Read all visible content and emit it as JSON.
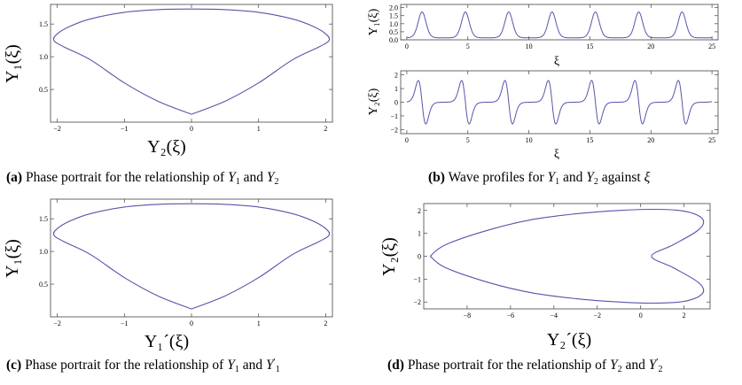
{
  "chart_data": [
    {
      "id": "a",
      "type": "line",
      "xlabel": "Y₂(ξ)",
      "ylabel": "Y₁(ξ)",
      "xlim": [
        -2.1,
        2.1
      ],
      "ylim": [
        0,
        1.8
      ],
      "xticks": [
        -2,
        -1,
        0,
        1,
        2
      ],
      "xtick_labels": [
        "−2",
        "−1",
        "0",
        "1",
        "2"
      ],
      "yticks": [
        0.5,
        1.0,
        1.5
      ],
      "ytick_labels": [
        "0.5",
        "1.0",
        "1.5"
      ],
      "series": [
        {
          "x": [
            0,
            0.5,
            1.0,
            1.5,
            1.9,
            2.05,
            2.0,
            1.8,
            1.5,
            1.0,
            0.5,
            0,
            -0.5,
            -1.0,
            -1.5,
            -1.8,
            -2.0,
            -2.05,
            -1.9,
            -1.5,
            -1.0,
            -0.5,
            0
          ],
          "y": [
            0.12,
            0.32,
            0.6,
            0.95,
            1.15,
            1.25,
            1.35,
            1.47,
            1.58,
            1.68,
            1.72,
            1.73,
            1.72,
            1.68,
            1.58,
            1.47,
            1.35,
            1.25,
            1.15,
            0.95,
            0.6,
            0.32,
            0.12
          ]
        }
      ],
      "caption": {
        "label": "(a)",
        "text": "Phase portrait for the relationship of",
        "v1": "Y",
        "s1": "1",
        "and": "and",
        "v2": "Y",
        "s2": "2"
      }
    },
    {
      "id": "b1",
      "type": "line",
      "xlabel": "ξ",
      "ylabel": "Y₁(ξ)",
      "xlim": [
        -0.5,
        25.5
      ],
      "ylim": [
        0,
        2.2
      ],
      "xticks": [
        0,
        5,
        10,
        15,
        20,
        25
      ],
      "xtick_labels": [
        "0",
        "5",
        "10",
        "15",
        "20",
        "25"
      ],
      "yticks": [
        0,
        0.5,
        1.0,
        1.5,
        2.0
      ],
      "ytick_labels": [
        "0.0",
        "0.5",
        "1.0",
        "1.5",
        "2.0"
      ],
      "period": 3.55,
      "peak_xi": 1.25,
      "min_value": 0.12,
      "max_value": 1.73
    },
    {
      "id": "b2",
      "type": "line",
      "xlabel": "ξ",
      "ylabel": "Y₂(ξ)",
      "xlim": [
        -0.5,
        25.5
      ],
      "ylim": [
        -2.3,
        2.3
      ],
      "xticks": [
        0,
        5,
        10,
        15,
        20,
        25
      ],
      "xtick_labels": [
        "0",
        "5",
        "10",
        "15",
        "20",
        "25"
      ],
      "yticks": [
        -2,
        -1,
        0,
        1,
        2
      ],
      "ytick_labels": [
        "−2",
        "−1",
        "0",
        "1",
        "2"
      ],
      "period": 3.55,
      "peak_xi": 1.25,
      "min_value": -2.05,
      "max_value": 2.05,
      "caption": {
        "label": "(b)",
        "text": "Wave profiles for",
        "v1": "Y",
        "s1": "1",
        "and": "and",
        "v2": "Y",
        "s2": "2",
        "tail": "against",
        "xi": "ξ"
      }
    },
    {
      "id": "c",
      "type": "line",
      "xlabel": "Y₁´(ξ)",
      "ylabel": "Y₁(ξ)",
      "xlim": [
        -2.1,
        2.1
      ],
      "ylim": [
        0,
        1.8
      ],
      "xticks": [
        -2,
        -1,
        0,
        1,
        2
      ],
      "xtick_labels": [
        "−2",
        "−1",
        "0",
        "1",
        "2"
      ],
      "yticks": [
        0.5,
        1.0,
        1.5
      ],
      "ytick_labels": [
        "0.5",
        "1.0",
        "1.5"
      ],
      "series": [
        {
          "x": [
            0,
            0.5,
            1.0,
            1.5,
            1.9,
            2.05,
            2.0,
            1.8,
            1.5,
            1.0,
            0.5,
            0,
            -0.5,
            -1.0,
            -1.5,
            -1.8,
            -2.0,
            -2.05,
            -1.9,
            -1.5,
            -1.0,
            -0.5,
            0
          ],
          "y": [
            0.12,
            0.32,
            0.6,
            0.95,
            1.15,
            1.25,
            1.35,
            1.47,
            1.58,
            1.68,
            1.72,
            1.73,
            1.72,
            1.68,
            1.58,
            1.47,
            1.35,
            1.25,
            1.15,
            0.95,
            0.6,
            0.32,
            0.12
          ]
        }
      ],
      "caption": {
        "label": "(c)",
        "text": "Phase portrait for the relationship of",
        "v1": "Y",
        "s1": "1",
        "and": "and",
        "v2": "Y",
        "s2": "1",
        "prime": "′"
      }
    },
    {
      "id": "d",
      "type": "line",
      "xlabel": "Y₂´(ξ)",
      "ylabel": "Y₂(ξ)",
      "xlim": [
        -10,
        3.2
      ],
      "ylim": [
        -2.3,
        2.3
      ],
      "xticks": [
        -8,
        -6,
        -4,
        -2,
        0,
        2
      ],
      "xtick_labels": [
        "−8",
        "−6",
        "−4",
        "−2",
        "0",
        "2"
      ],
      "yticks": [
        -2,
        -1,
        0,
        1,
        2
      ],
      "ytick_labels": [
        "−2",
        "−1",
        "0",
        "1",
        "2"
      ],
      "series": [
        {
          "x": [
            -9.7,
            -9.0,
            -7.0,
            -5.0,
            -3.0,
            -1.0,
            0.5,
            1.8,
            2.6,
            2.9,
            2.6,
            1.5,
            0.5,
            1.5,
            2.6,
            2.9,
            2.6,
            1.8,
            0.5,
            -1.0,
            -3.0,
            -5.0,
            -7.0,
            -9.0,
            -9.7
          ],
          "y": [
            0,
            0.5,
            1.15,
            1.6,
            1.85,
            2.0,
            2.05,
            2.0,
            1.8,
            1.5,
            1.1,
            0.5,
            0,
            -0.5,
            -1.1,
            -1.5,
            -1.8,
            -2.0,
            -2.05,
            -2.0,
            -1.85,
            -1.6,
            -1.15,
            -0.5,
            0
          ]
        }
      ],
      "caption": {
        "label": "(d)",
        "text": "Phase portrait for the relationship of",
        "v1": "Y",
        "s1": "2",
        "and": "and",
        "v2": "Y",
        "s2": "2",
        "prime": "′"
      }
    }
  ],
  "colors": {
    "curve": "#5555aa",
    "frame": "#444444"
  }
}
